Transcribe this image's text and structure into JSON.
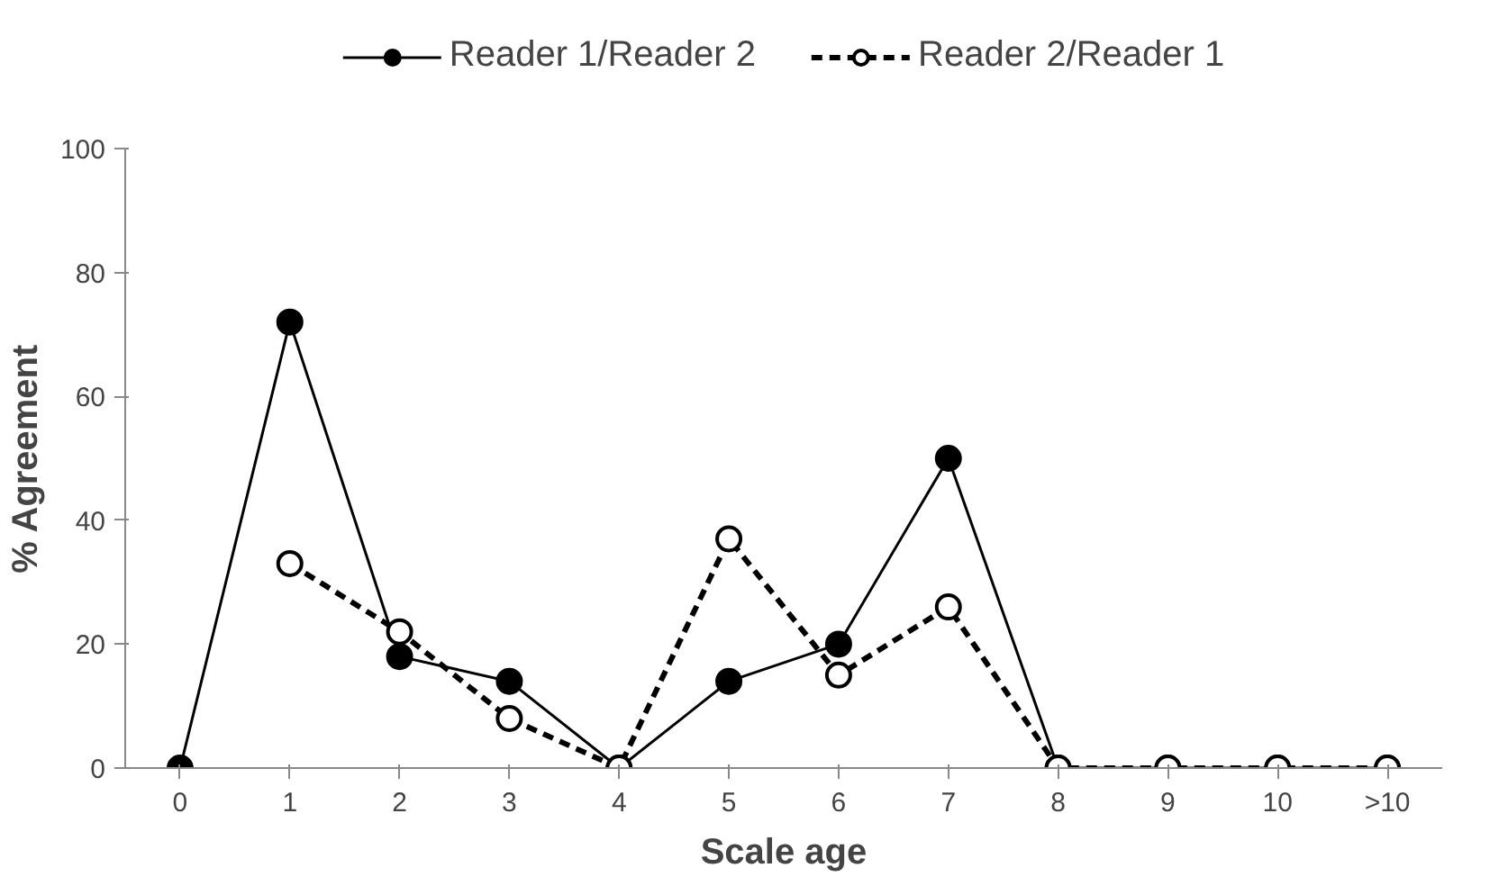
{
  "chart_data": {
    "type": "line",
    "xlabel": "Scale age",
    "ylabel": "% Agreement",
    "categories": [
      "0",
      "1",
      "2",
      "3",
      "4",
      "5",
      "6",
      "7",
      "8",
      "9",
      "10",
      ">10"
    ],
    "series": [
      {
        "name": "Reader 1/Reader 2",
        "color": "#000000",
        "line_style": "solid",
        "marker": "circle",
        "values": [
          0,
          72,
          18,
          14,
          0,
          14,
          20,
          50,
          0,
          0,
          0,
          0
        ]
      },
      {
        "name": "Reader 2/Reader 1",
        "color": "#000000",
        "line_style": "dashed",
        "marker": "circle",
        "values": [
          null,
          33,
          22,
          8,
          0,
          37,
          15,
          26,
          0,
          0,
          0,
          0
        ]
      }
    ],
    "ylim": [
      0,
      100
    ],
    "yticks": [
      0,
      20,
      40,
      60,
      80,
      100
    ],
    "grid": false,
    "legend": "top"
  }
}
